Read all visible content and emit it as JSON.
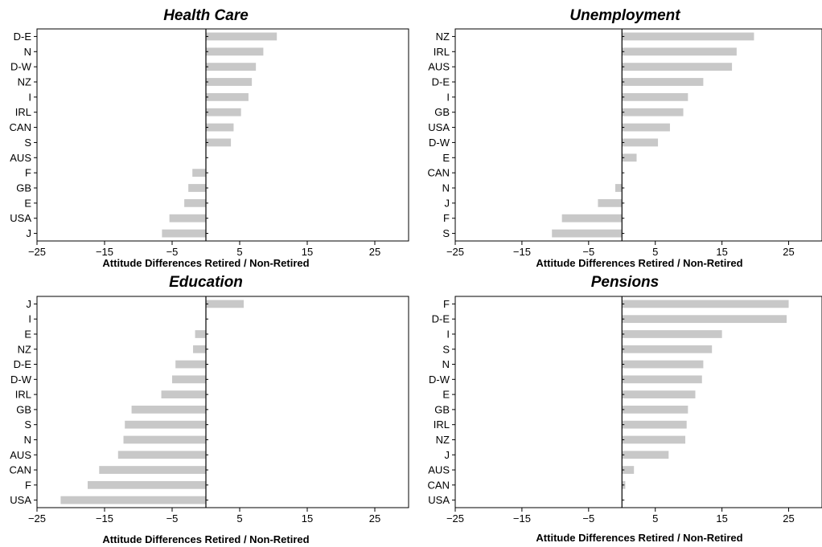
{
  "chart_data": [
    {
      "type": "bar",
      "orientation": "horizontal",
      "title": "Health Care",
      "xlabel": "Attitude Differences Retired / Non-Retired",
      "ylabel": "",
      "xlim": [
        -25,
        30
      ],
      "xticks": [
        -25,
        -15,
        -5,
        5,
        15,
        25
      ],
      "xtick_labels": [
        "−25",
        "−15",
        "−5",
        "5",
        "15",
        "25"
      ],
      "bar_color": "#c8c8c8",
      "grid": false,
      "categories": [
        "D-E",
        "N",
        "D-W",
        "NZ",
        "I",
        "IRL",
        "CAN",
        "S",
        "AUS",
        "F",
        "GB",
        "E",
        "USA",
        "J"
      ],
      "values": [
        10.5,
        8.5,
        7.4,
        6.8,
        6.3,
        5.2,
        4.1,
        3.7,
        0,
        -2.0,
        -2.6,
        -3.2,
        -5.4,
        -6.5
      ]
    },
    {
      "type": "bar",
      "orientation": "horizontal",
      "title": "Unemployment",
      "xlabel": "Attitude Differences Retired / Non-Retired",
      "ylabel": "",
      "xlim": [
        -25,
        30
      ],
      "xticks": [
        -25,
        -15,
        -5,
        5,
        15,
        25
      ],
      "xtick_labels": [
        "−25",
        "−15",
        "−5",
        "5",
        "15",
        "25"
      ],
      "bar_color": "#c8c8c8",
      "grid": false,
      "categories": [
        "NZ",
        "IRL",
        "AUS",
        "D-E",
        "I",
        "GB",
        "USA",
        "D-W",
        "E",
        "CAN",
        "N",
        "J",
        "F",
        "S"
      ],
      "values": [
        19.8,
        17.2,
        16.5,
        12.2,
        9.9,
        9.2,
        7.2,
        5.4,
        2.2,
        0,
        -1.0,
        -3.6,
        -9.0,
        -10.5
      ]
    },
    {
      "type": "bar",
      "orientation": "horizontal",
      "title": "Education",
      "xlabel": "Attitude Differences Retired / Non-Retired",
      "ylabel": "",
      "xlim": [
        -25,
        30
      ],
      "xticks": [
        -25,
        -15,
        -5,
        5,
        15,
        25
      ],
      "xtick_labels": [
        "−25",
        "−15",
        "−5",
        "5",
        "15",
        "25"
      ],
      "bar_color": "#c8c8c8",
      "grid": false,
      "categories": [
        "J",
        "I",
        "E",
        "NZ",
        "D-E",
        "D-W",
        "IRL",
        "GB",
        "S",
        "N",
        "AUS",
        "CAN",
        "F",
        "USA"
      ],
      "values": [
        5.6,
        0,
        -1.6,
        -1.9,
        -4.5,
        -5.0,
        -6.6,
        -11.0,
        -12.0,
        -12.2,
        -13.0,
        -15.8,
        -17.5,
        -21.5
      ]
    },
    {
      "type": "bar",
      "orientation": "horizontal",
      "title": "Pensions",
      "xlabel": "Attitude Differences Retired / Non-Retired",
      "ylabel": "",
      "xlim": [
        -25,
        30
      ],
      "xticks": [
        -25,
        -15,
        -5,
        5,
        15,
        25
      ],
      "xtick_labels": [
        "−25",
        "−15",
        "−5",
        "5",
        "15",
        "25"
      ],
      "bar_color": "#c8c8c8",
      "grid": false,
      "categories": [
        "F",
        "D-E",
        "I",
        "S",
        "N",
        "D-W",
        "E",
        "GB",
        "IRL",
        "NZ",
        "J",
        "AUS",
        "CAN",
        "USA"
      ],
      "values": [
        25.0,
        24.7,
        15.0,
        13.5,
        12.2,
        12.0,
        11.0,
        9.9,
        9.7,
        9.5,
        7.0,
        1.8,
        0.5,
        0
      ]
    }
  ]
}
